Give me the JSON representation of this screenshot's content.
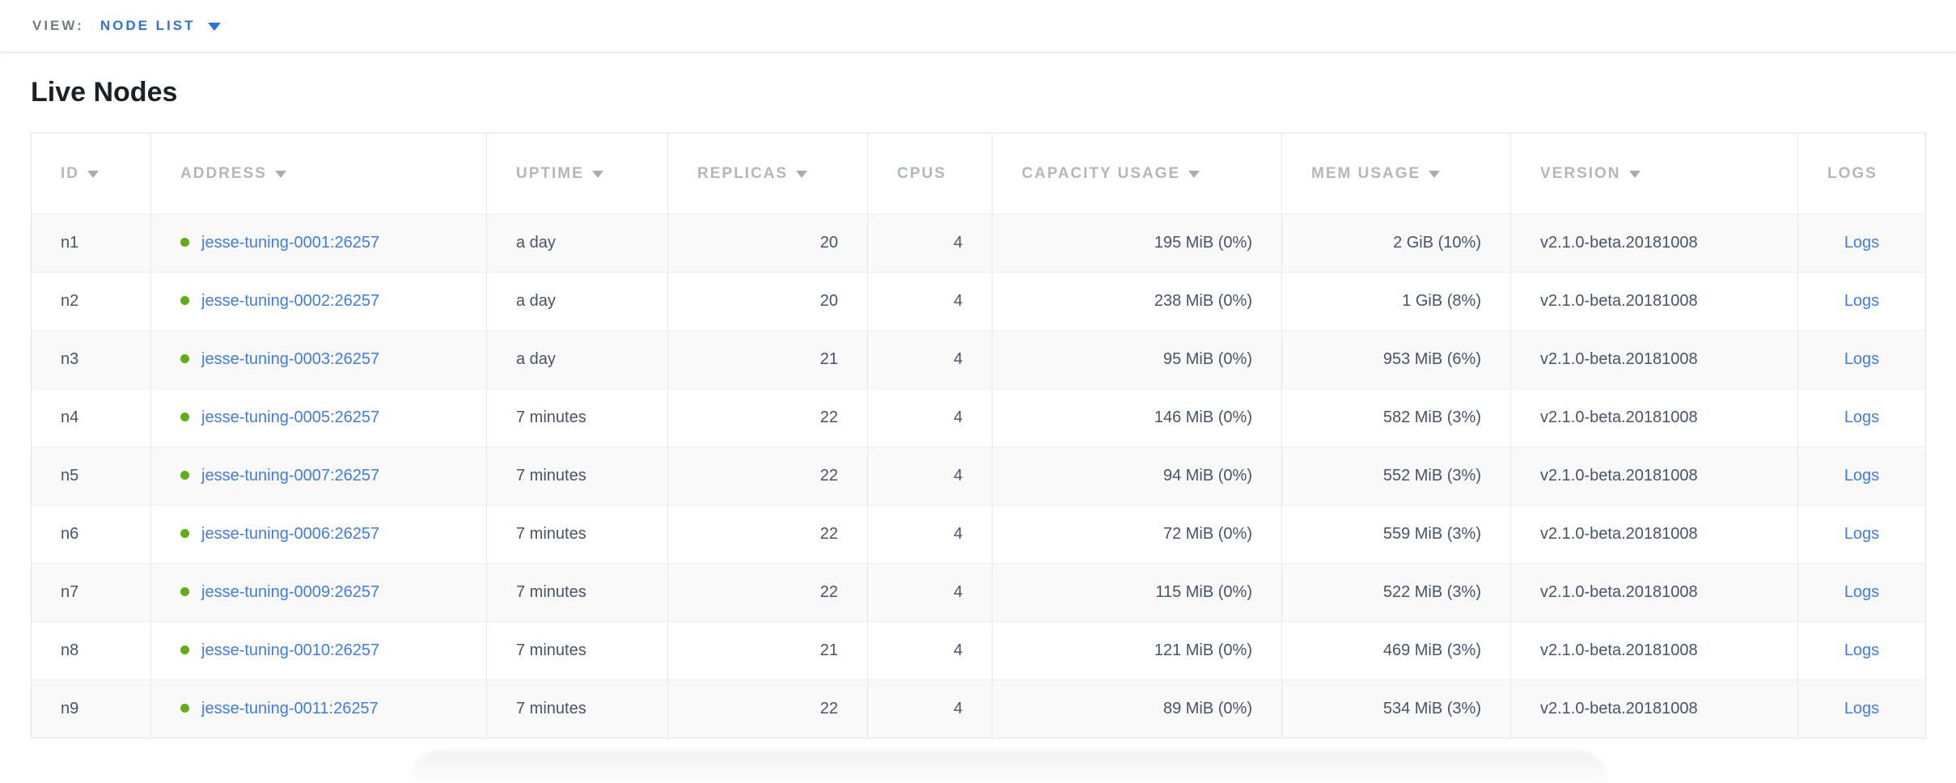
{
  "view_bar": {
    "label": "VIEW:",
    "selected": "NODE LIST"
  },
  "page": {
    "title": "Live Nodes"
  },
  "colors": {
    "accent_blue": "#2f72dd",
    "link_blue": "#3e7de1",
    "live_dot_green": "#5fae13",
    "header_gray": "#b3b7bb",
    "cell_slate": "#46536b"
  },
  "icons": {
    "view_dropdown": "chevron-down-icon",
    "sort": "sort-desc-triangle-icon",
    "node_status": "live-status-dot"
  },
  "table": {
    "columns": [
      {
        "label": "ID",
        "sortable": true,
        "cell_align": "left"
      },
      {
        "label": "ADDRESS",
        "sortable": true,
        "cell_align": "left"
      },
      {
        "label": "UPTIME",
        "sortable": true,
        "cell_align": "left"
      },
      {
        "label": "REPLICAS",
        "sortable": true,
        "cell_align": "right"
      },
      {
        "label": "CPUS",
        "sortable": false,
        "cell_align": "right"
      },
      {
        "label": "CAPACITY USAGE",
        "sortable": true,
        "cell_align": "right"
      },
      {
        "label": "MEM USAGE",
        "sortable": true,
        "cell_align": "right"
      },
      {
        "label": "VERSION",
        "sortable": true,
        "cell_align": "left"
      },
      {
        "label": "LOGS",
        "sortable": false,
        "cell_align": "center"
      }
    ],
    "rows": [
      {
        "id": "n1",
        "status": "live",
        "address": "jesse-tuning-0001:26257",
        "uptime": "a day",
        "replicas": "20",
        "cpus": "4",
        "capacity_usage": "195 MiB (0%)",
        "mem_usage": "2 GiB (10%)",
        "version": "v2.1.0-beta.20181008",
        "logs_label": "Logs"
      },
      {
        "id": "n2",
        "status": "live",
        "address": "jesse-tuning-0002:26257",
        "uptime": "a day",
        "replicas": "20",
        "cpus": "4",
        "capacity_usage": "238 MiB (0%)",
        "mem_usage": "1 GiB (8%)",
        "version": "v2.1.0-beta.20181008",
        "logs_label": "Logs"
      },
      {
        "id": "n3",
        "status": "live",
        "address": "jesse-tuning-0003:26257",
        "uptime": "a day",
        "replicas": "21",
        "cpus": "4",
        "capacity_usage": "95 MiB (0%)",
        "mem_usage": "953 MiB (6%)",
        "version": "v2.1.0-beta.20181008",
        "logs_label": "Logs"
      },
      {
        "id": "n4",
        "status": "live",
        "address": "jesse-tuning-0005:26257",
        "uptime": "7 minutes",
        "replicas": "22",
        "cpus": "4",
        "capacity_usage": "146 MiB (0%)",
        "mem_usage": "582 MiB (3%)",
        "version": "v2.1.0-beta.20181008",
        "logs_label": "Logs"
      },
      {
        "id": "n5",
        "status": "live",
        "address": "jesse-tuning-0007:26257",
        "uptime": "7 minutes",
        "replicas": "22",
        "cpus": "4",
        "capacity_usage": "94 MiB (0%)",
        "mem_usage": "552 MiB (3%)",
        "version": "v2.1.0-beta.20181008",
        "logs_label": "Logs"
      },
      {
        "id": "n6",
        "status": "live",
        "address": "jesse-tuning-0006:26257",
        "uptime": "7 minutes",
        "replicas": "22",
        "cpus": "4",
        "capacity_usage": "72 MiB (0%)",
        "mem_usage": "559 MiB (3%)",
        "version": "v2.1.0-beta.20181008",
        "logs_label": "Logs"
      },
      {
        "id": "n7",
        "status": "live",
        "address": "jesse-tuning-0009:26257",
        "uptime": "7 minutes",
        "replicas": "22",
        "cpus": "4",
        "capacity_usage": "115 MiB (0%)",
        "mem_usage": "522 MiB (3%)",
        "version": "v2.1.0-beta.20181008",
        "logs_label": "Logs"
      },
      {
        "id": "n8",
        "status": "live",
        "address": "jesse-tuning-0010:26257",
        "uptime": "7 minutes",
        "replicas": "21",
        "cpus": "4",
        "capacity_usage": "121 MiB (0%)",
        "mem_usage": "469 MiB (3%)",
        "version": "v2.1.0-beta.20181008",
        "logs_label": "Logs"
      },
      {
        "id": "n9",
        "status": "live",
        "address": "jesse-tuning-0011:26257",
        "uptime": "7 minutes",
        "replicas": "22",
        "cpus": "4",
        "capacity_usage": "89 MiB (0%)",
        "mem_usage": "534 MiB (3%)",
        "version": "v2.1.0-beta.20181008",
        "logs_label": "Logs"
      }
    ]
  }
}
